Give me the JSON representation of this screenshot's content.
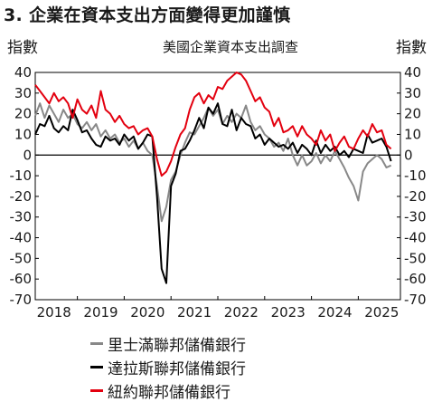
{
  "figure": {
    "title": "3. 企業在資本支出方面變得更加謹慎"
  },
  "chart_data": {
    "type": "line",
    "title": "美國企業資本支出調查",
    "ylabel_left": "指數",
    "ylabel_right": "指數",
    "ylim": [
      -70,
      40
    ],
    "yticks": [
      "-70",
      "-60",
      "-50",
      "-40",
      "-30",
      "-20",
      "-10",
      "0",
      "10",
      "20",
      "30",
      "40"
    ],
    "xlim": [
      2017.6,
      2025.4
    ],
    "xticks": [
      "2018",
      "2019",
      "2020",
      "2021",
      "2022",
      "2023",
      "2024",
      "2025"
    ],
    "zero_line": true,
    "grid": false,
    "legend_position": "bottom",
    "series": [
      {
        "name": "里士滿聯邦儲備銀行",
        "color": "#888888",
        "points": [
          [
            2017.6,
            19
          ],
          [
            2017.7,
            25
          ],
          [
            2017.8,
            18
          ],
          [
            2017.9,
            24
          ],
          [
            2018.0,
            20
          ],
          [
            2018.1,
            16
          ],
          [
            2018.2,
            22
          ],
          [
            2018.3,
            18
          ],
          [
            2018.4,
            20
          ],
          [
            2018.5,
            15
          ],
          [
            2018.6,
            13
          ],
          [
            2018.7,
            16
          ],
          [
            2018.8,
            12
          ],
          [
            2018.9,
            15
          ],
          [
            2019.0,
            9
          ],
          [
            2019.1,
            12
          ],
          [
            2019.2,
            8
          ],
          [
            2019.3,
            10
          ],
          [
            2019.4,
            6
          ],
          [
            2019.5,
            8
          ],
          [
            2019.6,
            4
          ],
          [
            2019.7,
            7
          ],
          [
            2019.8,
            3
          ],
          [
            2019.9,
            6
          ],
          [
            2020.0,
            2
          ],
          [
            2020.1,
            0
          ],
          [
            2020.2,
            -15
          ],
          [
            2020.3,
            -32
          ],
          [
            2020.4,
            -25
          ],
          [
            2020.5,
            -12
          ],
          [
            2020.6,
            -8
          ],
          [
            2020.7,
            0
          ],
          [
            2020.8,
            6
          ],
          [
            2020.9,
            11
          ],
          [
            2021.0,
            10
          ],
          [
            2021.1,
            14
          ],
          [
            2021.2,
            18
          ],
          [
            2021.3,
            23
          ],
          [
            2021.4,
            19
          ],
          [
            2021.5,
            22
          ],
          [
            2021.6,
            15
          ],
          [
            2021.7,
            19
          ],
          [
            2021.8,
            16
          ],
          [
            2021.9,
            20
          ],
          [
            2022.0,
            18
          ],
          [
            2022.1,
            24
          ],
          [
            2022.2,
            16
          ],
          [
            2022.3,
            12
          ],
          [
            2022.4,
            14
          ],
          [
            2022.5,
            10
          ],
          [
            2022.6,
            8
          ],
          [
            2022.7,
            4
          ],
          [
            2022.8,
            6
          ],
          [
            2022.9,
            2
          ],
          [
            2023.0,
            8
          ],
          [
            2023.1,
            0
          ],
          [
            2023.2,
            -5
          ],
          [
            2023.3,
            0
          ],
          [
            2023.4,
            -5
          ],
          [
            2023.5,
            -3
          ],
          [
            2023.6,
            1
          ],
          [
            2023.7,
            -4
          ],
          [
            2023.8,
            0
          ],
          [
            2023.9,
            -3
          ],
          [
            2024.0,
            2
          ],
          [
            2024.1,
            -2
          ],
          [
            2024.2,
            -6
          ],
          [
            2024.3,
            -11
          ],
          [
            2024.4,
            -15
          ],
          [
            2024.5,
            -22
          ],
          [
            2024.6,
            -8
          ],
          [
            2024.7,
            -4
          ],
          [
            2024.8,
            -2
          ],
          [
            2024.9,
            0
          ],
          [
            2025.0,
            -2
          ],
          [
            2025.1,
            -6
          ],
          [
            2025.2,
            -5
          ]
        ]
      },
      {
        "name": "達拉斯聯邦儲備銀行",
        "color": "#000000",
        "points": [
          [
            2017.6,
            10
          ],
          [
            2017.7,
            15
          ],
          [
            2017.8,
            14
          ],
          [
            2017.9,
            19
          ],
          [
            2018.0,
            13
          ],
          [
            2018.1,
            11
          ],
          [
            2018.2,
            14
          ],
          [
            2018.3,
            12
          ],
          [
            2018.4,
            22
          ],
          [
            2018.5,
            17
          ],
          [
            2018.6,
            11
          ],
          [
            2018.7,
            12
          ],
          [
            2018.8,
            8
          ],
          [
            2018.9,
            5
          ],
          [
            2019.0,
            4
          ],
          [
            2019.1,
            9
          ],
          [
            2019.2,
            7
          ],
          [
            2019.3,
            8
          ],
          [
            2019.4,
            5
          ],
          [
            2019.5,
            10
          ],
          [
            2019.6,
            7
          ],
          [
            2019.7,
            9
          ],
          [
            2019.8,
            3
          ],
          [
            2019.9,
            6
          ],
          [
            2020.0,
            10
          ],
          [
            2020.1,
            9
          ],
          [
            2020.2,
            -20
          ],
          [
            2020.3,
            -55
          ],
          [
            2020.4,
            -62
          ],
          [
            2020.5,
            -15
          ],
          [
            2020.6,
            -9
          ],
          [
            2020.7,
            2
          ],
          [
            2020.8,
            3
          ],
          [
            2020.9,
            7
          ],
          [
            2021.0,
            12
          ],
          [
            2021.1,
            18
          ],
          [
            2021.2,
            13
          ],
          [
            2021.3,
            23
          ],
          [
            2021.4,
            20
          ],
          [
            2021.5,
            25
          ],
          [
            2021.6,
            15
          ],
          [
            2021.7,
            14
          ],
          [
            2021.8,
            22
          ],
          [
            2021.9,
            12
          ],
          [
            2022.0,
            18
          ],
          [
            2022.1,
            15
          ],
          [
            2022.2,
            14
          ],
          [
            2022.3,
            8
          ],
          [
            2022.4,
            10
          ],
          [
            2022.5,
            5
          ],
          [
            2022.6,
            8
          ],
          [
            2022.7,
            6
          ],
          [
            2022.8,
            4
          ],
          [
            2022.9,
            5
          ],
          [
            2023.0,
            3
          ],
          [
            2023.1,
            6
          ],
          [
            2023.2,
            1
          ],
          [
            2023.3,
            5
          ],
          [
            2023.4,
            3
          ],
          [
            2023.5,
            0
          ],
          [
            2023.6,
            7
          ],
          [
            2023.7,
            1
          ],
          [
            2023.8,
            5
          ],
          [
            2023.9,
            2
          ],
          [
            2024.0,
            4
          ],
          [
            2024.1,
            0
          ],
          [
            2024.2,
            2
          ],
          [
            2024.3,
            -1
          ],
          [
            2024.4,
            3
          ],
          [
            2024.5,
            2
          ],
          [
            2024.6,
            1
          ],
          [
            2024.7,
            10
          ],
          [
            2024.8,
            6
          ],
          [
            2024.9,
            7
          ],
          [
            2025.0,
            8
          ],
          [
            2025.1,
            4
          ],
          [
            2025.2,
            -3
          ]
        ]
      },
      {
        "name": "紐約聯邦儲備銀行",
        "color": "#e3000f",
        "points": [
          [
            2017.6,
            34
          ],
          [
            2017.7,
            31
          ],
          [
            2017.8,
            28
          ],
          [
            2017.9,
            25
          ],
          [
            2018.0,
            30
          ],
          [
            2018.1,
            26
          ],
          [
            2018.2,
            28
          ],
          [
            2018.3,
            25
          ],
          [
            2018.4,
            18
          ],
          [
            2018.5,
            27
          ],
          [
            2018.6,
            22
          ],
          [
            2018.7,
            20
          ],
          [
            2018.8,
            24
          ],
          [
            2018.9,
            18
          ],
          [
            2019.0,
            31
          ],
          [
            2019.1,
            22
          ],
          [
            2019.2,
            20
          ],
          [
            2019.3,
            16
          ],
          [
            2019.4,
            19
          ],
          [
            2019.5,
            15
          ],
          [
            2019.6,
            13
          ],
          [
            2019.7,
            14
          ],
          [
            2019.8,
            10
          ],
          [
            2019.9,
            12
          ],
          [
            2020.0,
            13
          ],
          [
            2020.1,
            9
          ],
          [
            2020.2,
            -2
          ],
          [
            2020.3,
            -10
          ],
          [
            2020.4,
            -8
          ],
          [
            2020.5,
            -3
          ],
          [
            2020.6,
            4
          ],
          [
            2020.7,
            10
          ],
          [
            2020.8,
            13
          ],
          [
            2020.9,
            22
          ],
          [
            2021.0,
            28
          ],
          [
            2021.1,
            30
          ],
          [
            2021.2,
            25
          ],
          [
            2021.3,
            29
          ],
          [
            2021.4,
            27
          ],
          [
            2021.5,
            33
          ],
          [
            2021.6,
            32
          ],
          [
            2021.7,
            36
          ],
          [
            2021.8,
            38
          ],
          [
            2021.9,
            40
          ],
          [
            2022.0,
            39
          ],
          [
            2022.1,
            36
          ],
          [
            2022.2,
            31
          ],
          [
            2022.3,
            26
          ],
          [
            2022.4,
            28
          ],
          [
            2022.5,
            23
          ],
          [
            2022.6,
            21
          ],
          [
            2022.7,
            14
          ],
          [
            2022.8,
            18
          ],
          [
            2022.9,
            11
          ],
          [
            2023.0,
            12
          ],
          [
            2023.1,
            14
          ],
          [
            2023.2,
            9
          ],
          [
            2023.3,
            14
          ],
          [
            2023.4,
            10
          ],
          [
            2023.5,
            8
          ],
          [
            2023.6,
            5
          ],
          [
            2023.7,
            12
          ],
          [
            2023.8,
            7
          ],
          [
            2023.9,
            10
          ],
          [
            2024.0,
            2
          ],
          [
            2024.1,
            6
          ],
          [
            2024.2,
            9
          ],
          [
            2024.3,
            4
          ],
          [
            2024.4,
            3
          ],
          [
            2024.5,
            8
          ],
          [
            2024.6,
            12
          ],
          [
            2024.7,
            9
          ],
          [
            2024.8,
            15
          ],
          [
            2024.9,
            11
          ],
          [
            2025.0,
            12
          ],
          [
            2025.1,
            5
          ],
          [
            2025.2,
            3
          ]
        ]
      }
    ]
  }
}
